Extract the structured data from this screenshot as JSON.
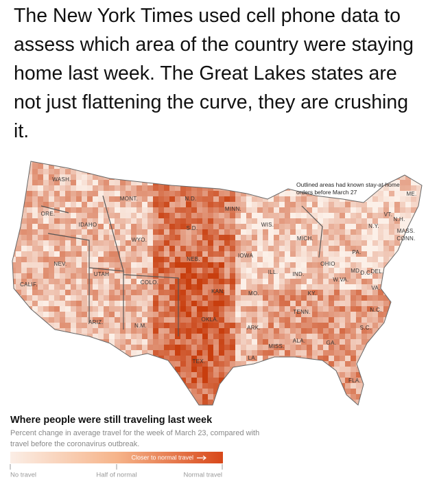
{
  "post": {
    "text": "The New York Times used cell phone data to assess which area of the country were staying home last week.  The Great Lakes states are not just flattening the curve, they are crushing it."
  },
  "map": {
    "note": "Outlined areas had known stay-at-home orders before March 27",
    "state_labels": [
      "WASH.",
      "MONT.",
      "N.D.",
      "MINN.",
      "ORE.",
      "IDAHO",
      "WYO.",
      "S.D.",
      "WIS.",
      "MICH.",
      "NEV.",
      "UTAH",
      "NEB.",
      "IOWA",
      "ILL.",
      "IND.",
      "OHIO",
      "PA.",
      "CALIF.",
      "COLO.",
      "KAN.",
      "MO.",
      "W.VA.",
      "VA.",
      "KY.",
      "TENN.",
      "N.C.",
      "ARIZ.",
      "N.M.",
      "OKLA.",
      "ARK.",
      "S.C.",
      "MISS.",
      "ALA.",
      "GA.",
      "TEX.",
      "LA.",
      "FLA.",
      "ME.",
      "VT.",
      "N.H.",
      "N.Y.",
      "MASS.",
      "CONN.",
      "MD.",
      "D.C.",
      "DEL."
    ],
    "legend": {
      "title": "Where people were still traveling last week",
      "subtitle": "Percent change in average travel for the week of March 23, compared with travel before the coronavirus outbreak.",
      "bar_label": "Closer to normal travel",
      "ticks": [
        "No travel",
        "Half of normal",
        "Normal travel"
      ]
    }
  }
}
